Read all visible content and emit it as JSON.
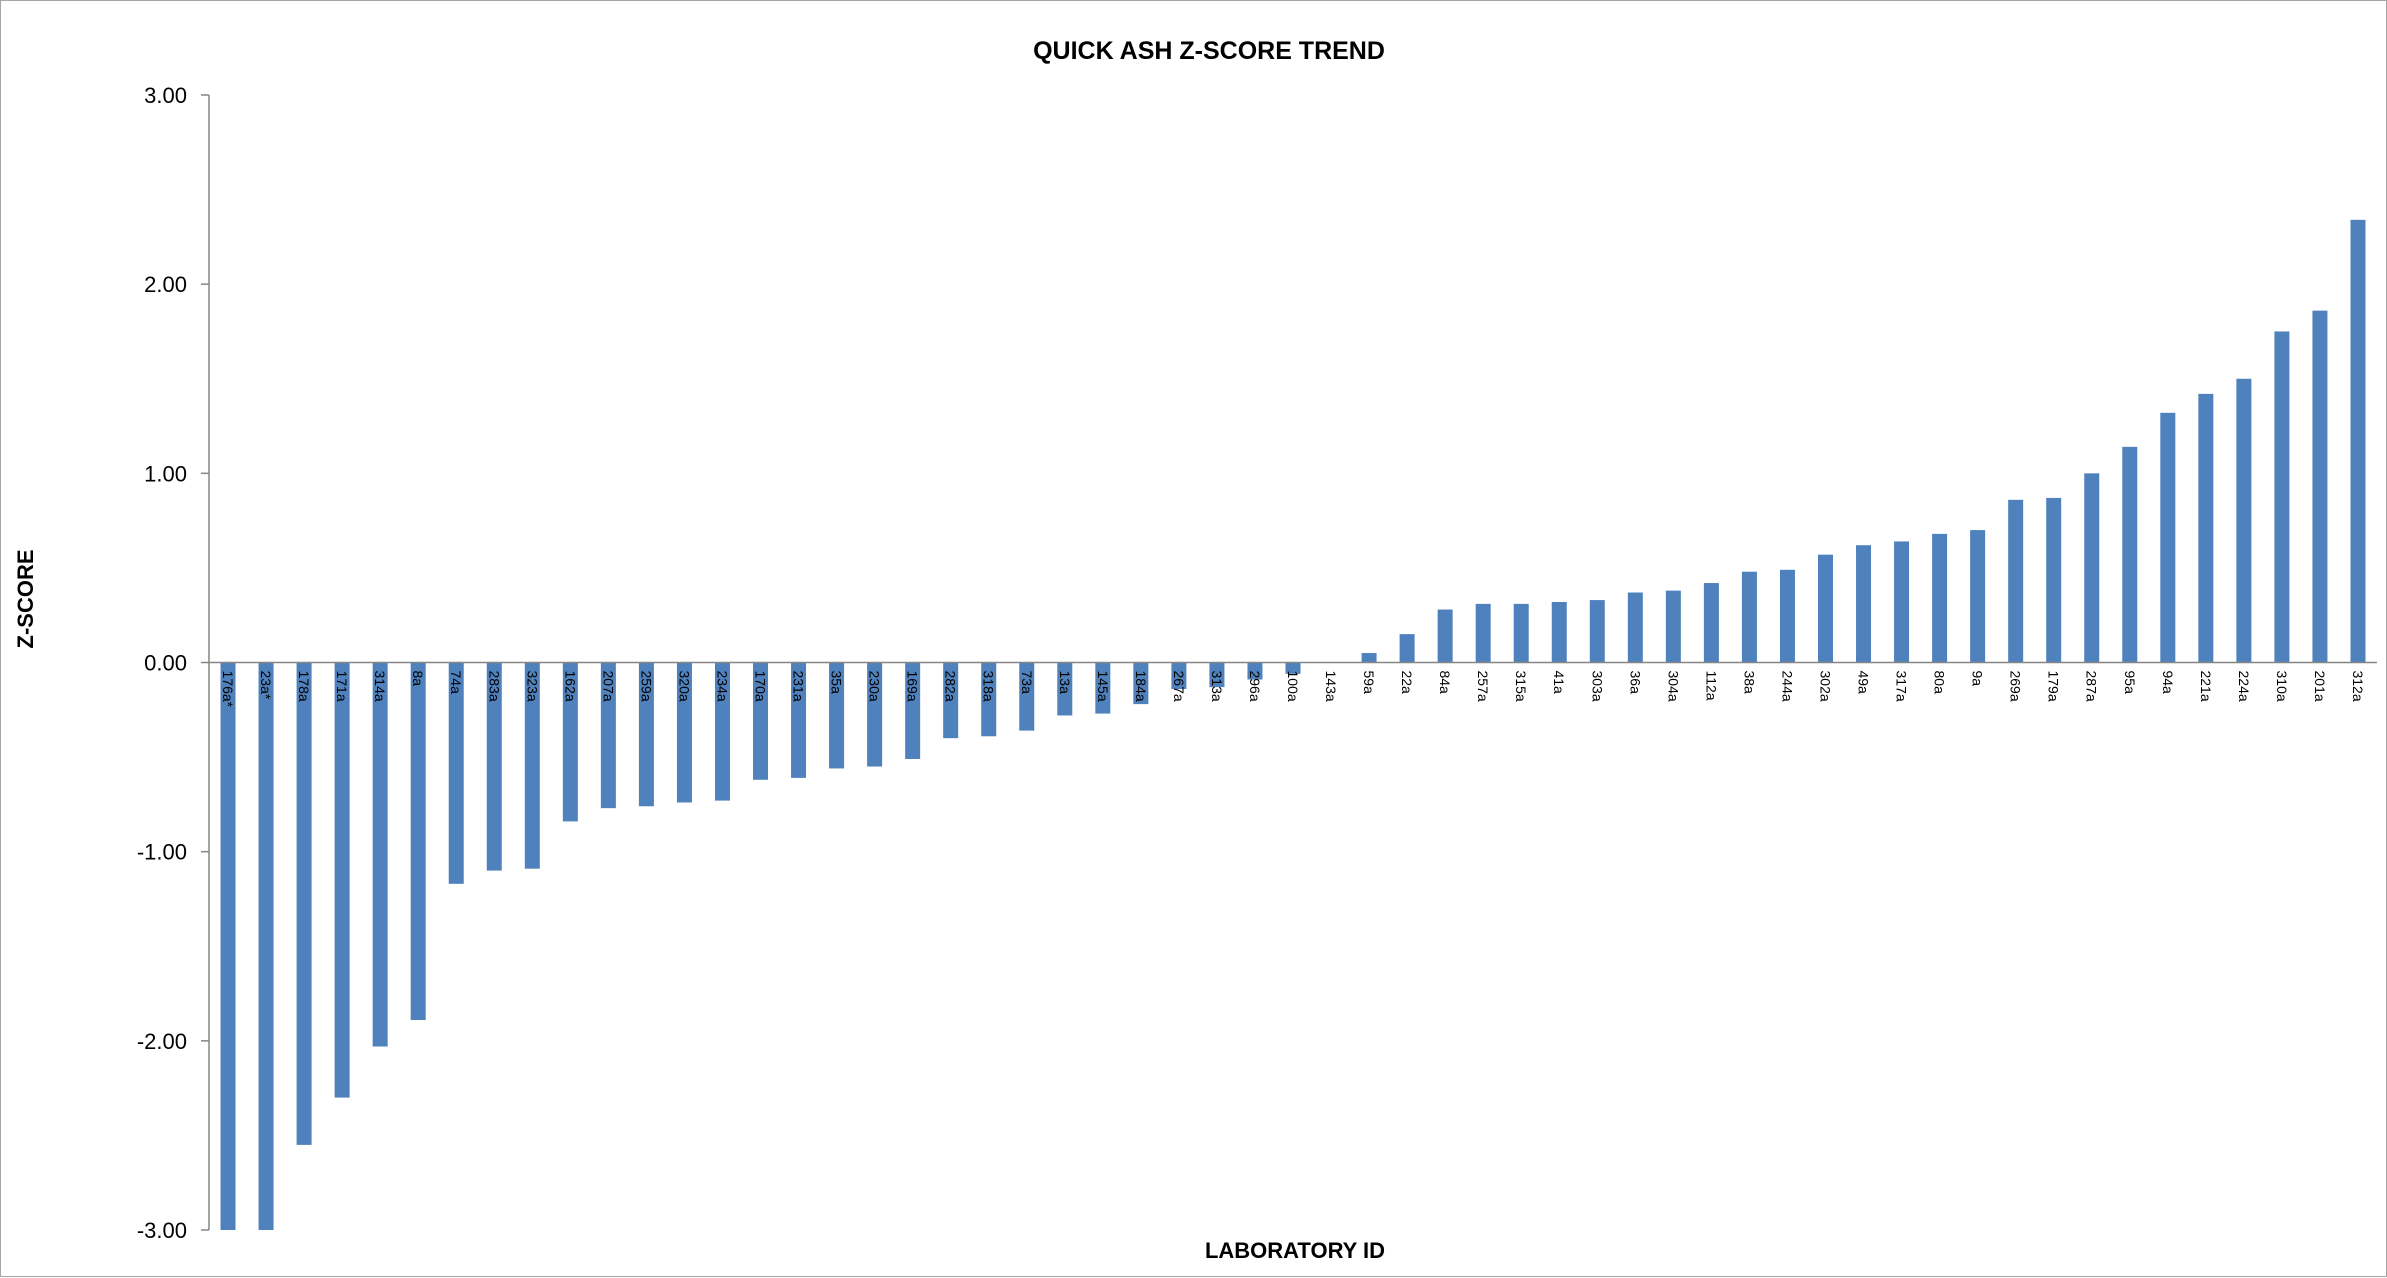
{
  "chart_data": {
    "type": "bar",
    "title": "QUICK ASH Z-SCORE TREND",
    "xlabel": "LABORATORY ID",
    "ylabel": "Z-SCORE",
    "ylim": [
      -3,
      3
    ],
    "yticks": [
      "3.00",
      "2.00",
      "1.00",
      "0.00",
      "-1.00",
      "-2.00",
      "-3.00"
    ],
    "grid": false,
    "legend": "none",
    "bar_color": "#4f81bd",
    "categories": [
      "176a*",
      "23a*",
      "178a",
      "171a",
      "314a",
      "8a",
      "74a",
      "283a",
      "323a",
      "162a",
      "207a",
      "259a",
      "320a",
      "234a",
      "170a",
      "231a",
      "35a",
      "230a",
      "169a",
      "282a",
      "318a",
      "73a",
      "13a",
      "145a",
      "184a",
      "267a",
      "313a",
      "296a",
      "100a",
      "143a",
      "59a",
      "22a",
      "84a",
      "257a",
      "315a",
      "41a",
      "303a",
      "36a",
      "304a",
      "112a",
      "38a",
      "244a",
      "302a",
      "49a",
      "317a",
      "80a",
      "9a",
      "269a",
      "179a",
      "287a",
      "95a",
      "94a",
      "221a",
      "224a",
      "310a",
      "201a",
      "312a"
    ],
    "values": [
      -3.0,
      -3.0,
      -2.55,
      -2.3,
      -2.03,
      -1.89,
      -1.17,
      -1.1,
      -1.09,
      -0.84,
      -0.77,
      -0.76,
      -0.74,
      -0.73,
      -0.62,
      -0.61,
      -0.56,
      -0.55,
      -0.51,
      -0.4,
      -0.39,
      -0.36,
      -0.28,
      -0.27,
      -0.22,
      -0.14,
      -0.13,
      -0.09,
      -0.06,
      0.0,
      0.05,
      0.15,
      0.28,
      0.31,
      0.31,
      0.32,
      0.33,
      0.37,
      0.38,
      0.42,
      0.48,
      0.49,
      0.57,
      0.62,
      0.64,
      0.68,
      0.7,
      0.86,
      0.87,
      1.0,
      1.14,
      1.32,
      1.42,
      1.5,
      1.75,
      1.86,
      2.34
    ]
  }
}
